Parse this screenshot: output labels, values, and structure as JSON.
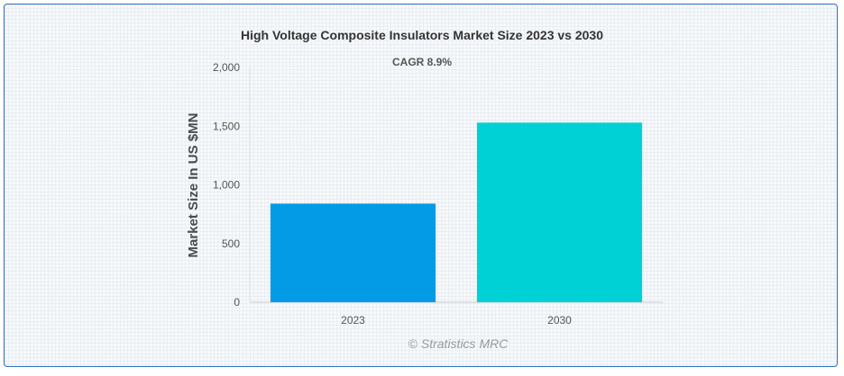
{
  "chart_data": {
    "type": "bar",
    "title": "High Voltage Composite Insulators Market Size 2023 vs 2030",
    "subtitle": "CAGR 8.9%",
    "xlabel": "",
    "ylabel": "Market Size In US $MN",
    "categories": [
      "2023",
      "2030"
    ],
    "values": [
      840,
      1530
    ],
    "colors": [
      "#039be5",
      "#00d1d5"
    ],
    "ylim": [
      0,
      2000
    ],
    "yticks": [
      0,
      500,
      1000,
      1500,
      2000
    ],
    "ytick_labels": [
      "0",
      "500",
      "1,000",
      "1,500",
      "2,000"
    ],
    "credit": "© Stratistics MRC"
  }
}
